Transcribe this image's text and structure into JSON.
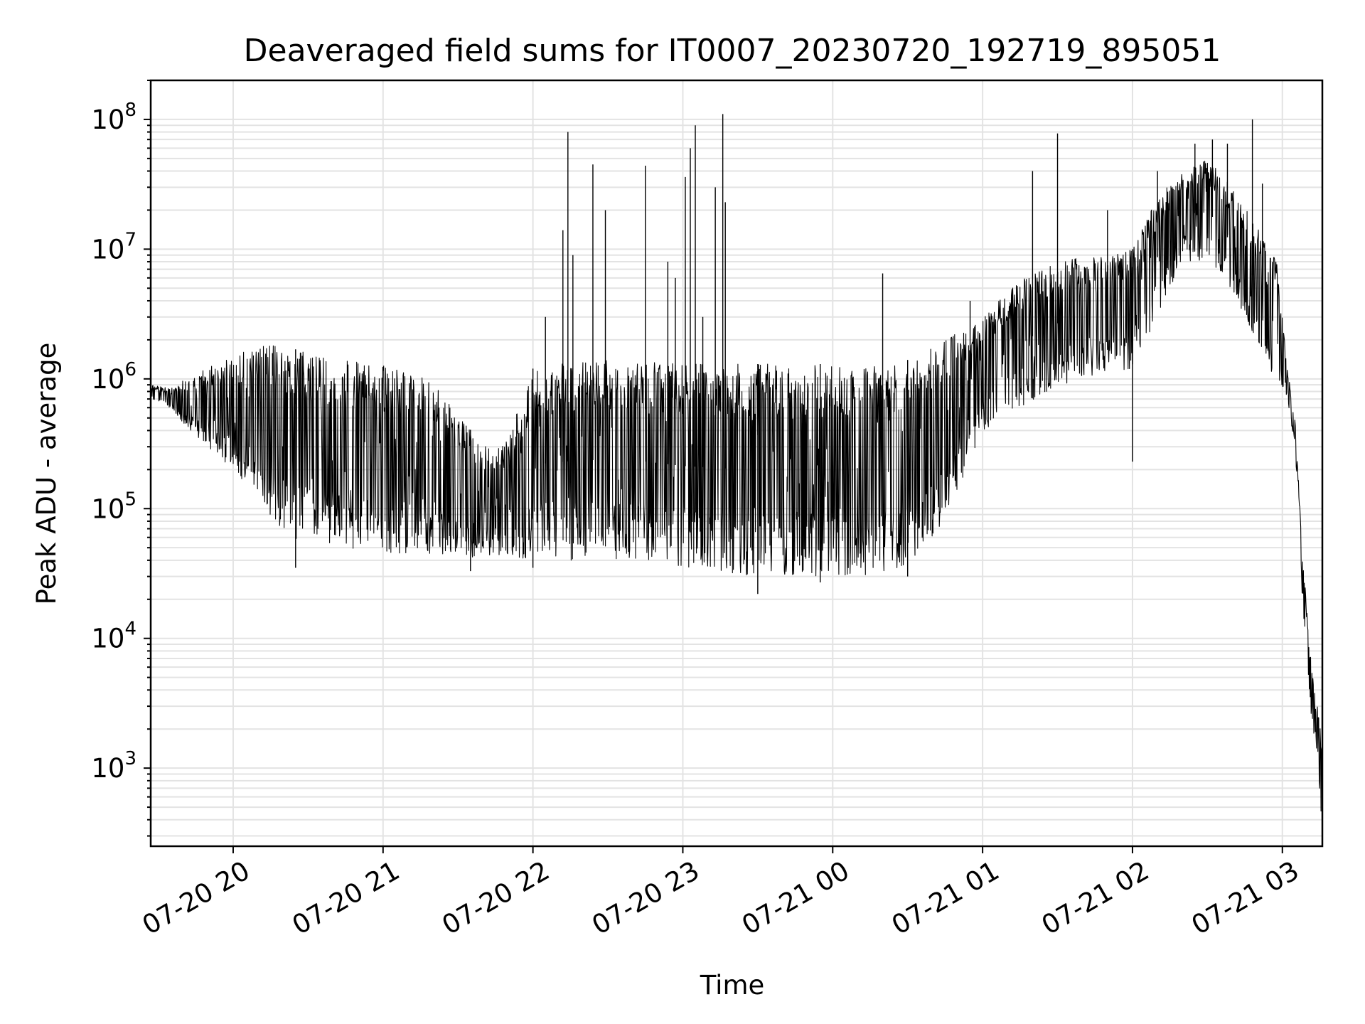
{
  "chart_data": {
    "type": "line",
    "title": "Deaveraged field sums for IT0007_20230720_192719_895051",
    "xlabel": "Time",
    "ylabel": "Peak ADU - average",
    "yscale": "log",
    "ylim": [
      250,
      200000000
    ],
    "xlim": [
      "2023-07-20 19:27",
      "2023-07-21 03:16"
    ],
    "grid": true,
    "line_color": "#000000",
    "x_ticks": [
      {
        "value": "2023-07-20 20:00",
        "label": "07-20 20"
      },
      {
        "value": "2023-07-20 21:00",
        "label": "07-20 21"
      },
      {
        "value": "2023-07-20 22:00",
        "label": "07-20 22"
      },
      {
        "value": "2023-07-20 23:00",
        "label": "07-20 23"
      },
      {
        "value": "2023-07-21 00:00",
        "label": "07-21 00"
      },
      {
        "value": "2023-07-21 01:00",
        "label": "07-21 01"
      },
      {
        "value": "2023-07-21 02:00",
        "label": "07-21 02"
      },
      {
        "value": "2023-07-21 03:00",
        "label": "07-21 03"
      }
    ],
    "y_ticks": [
      {
        "value": 1000,
        "base": "10",
        "exp": "3"
      },
      {
        "value": 10000,
        "base": "10",
        "exp": "4"
      },
      {
        "value": 100000,
        "base": "10",
        "exp": "5"
      },
      {
        "value": 1000000,
        "base": "10",
        "exp": "6"
      },
      {
        "value": 10000000,
        "base": "10",
        "exp": "7"
      },
      {
        "value": 100000000,
        "base": "10",
        "exp": "8"
      }
    ],
    "series": [
      {
        "envelope": [
          {
            "x": "2023-07-20 19:27",
            "upper": 900000,
            "lower": 650000
          },
          {
            "x": "2023-07-20 19:35",
            "upper": 850000,
            "lower": 600000
          },
          {
            "x": "2023-07-20 19:45",
            "upper": 1100000,
            "lower": 350000
          },
          {
            "x": "2023-07-20 20:00",
            "upper": 1500000,
            "lower": 200000
          },
          {
            "x": "2023-07-20 20:10",
            "upper": 1800000,
            "lower": 120000
          },
          {
            "x": "2023-07-20 20:20",
            "upper": 1800000,
            "lower": 60000
          },
          {
            "x": "2023-07-20 20:40",
            "upper": 1400000,
            "lower": 50000
          },
          {
            "x": "2023-07-20 21:00",
            "upper": 1300000,
            "lower": 45000
          },
          {
            "x": "2023-07-20 21:20",
            "upper": 1000000,
            "lower": 45000
          },
          {
            "x": "2023-07-20 21:40",
            "upper": 300000,
            "lower": 40000
          },
          {
            "x": "2023-07-20 21:50",
            "upper": 350000,
            "lower": 40000
          },
          {
            "x": "2023-07-20 22:00",
            "upper": 1200000,
            "lower": 40000
          },
          {
            "x": "2023-07-20 22:20",
            "upper": 1400000,
            "lower": 40000
          },
          {
            "x": "2023-07-20 22:40",
            "upper": 1400000,
            "lower": 40000
          },
          {
            "x": "2023-07-20 23:00",
            "upper": 1300000,
            "lower": 35000
          },
          {
            "x": "2023-07-20 23:30",
            "upper": 1300000,
            "lower": 30000
          },
          {
            "x": "2023-07-20 23:50",
            "upper": 1300000,
            "lower": 30000
          },
          {
            "x": "2023-07-21 00:10",
            "upper": 1300000,
            "lower": 30000
          },
          {
            "x": "2023-07-21 00:30",
            "upper": 1400000,
            "lower": 35000
          },
          {
            "x": "2023-07-21 00:45",
            "upper": 2000000,
            "lower": 80000
          },
          {
            "x": "2023-07-21 01:00",
            "upper": 3000000,
            "lower": 400000
          },
          {
            "x": "2023-07-21 01:15",
            "upper": 6000000,
            "lower": 600000
          },
          {
            "x": "2023-07-21 01:30",
            "upper": 8000000,
            "lower": 900000
          },
          {
            "x": "2023-07-21 01:45",
            "upper": 9000000,
            "lower": 1000000
          },
          {
            "x": "2023-07-21 02:00",
            "upper": 10000000,
            "lower": 1200000
          },
          {
            "x": "2023-07-21 02:10",
            "upper": 25000000,
            "lower": 3000000
          },
          {
            "x": "2023-07-21 02:20",
            "upper": 40000000,
            "lower": 8000000
          },
          {
            "x": "2023-07-21 02:30",
            "upper": 50000000,
            "lower": 8000000
          },
          {
            "x": "2023-07-21 02:40",
            "upper": 30000000,
            "lower": 4000000
          },
          {
            "x": "2023-07-21 02:50",
            "upper": 15000000,
            "lower": 2000000
          },
          {
            "x": "2023-07-21 02:58",
            "upper": 8000000,
            "lower": 900000
          },
          {
            "x": "2023-07-21 03:02",
            "upper": 1200000,
            "lower": 700000
          },
          {
            "x": "2023-07-21 03:05",
            "upper": 500000,
            "lower": 300000
          },
          {
            "x": "2023-07-21 03:08",
            "upper": 50000,
            "lower": 20000
          },
          {
            "x": "2023-07-21 03:11",
            "upper": 8000,
            "lower": 3000
          },
          {
            "x": "2023-07-21 03:14",
            "upper": 3000,
            "lower": 1200
          },
          {
            "x": "2023-07-21 03:16",
            "upper": 1500,
            "lower": 300
          }
        ],
        "spikes": [
          {
            "x": "2023-07-20 22:05",
            "value": 3000000
          },
          {
            "x": "2023-07-20 22:12",
            "value": 14000000
          },
          {
            "x": "2023-07-20 22:14",
            "value": 80000000
          },
          {
            "x": "2023-07-20 22:16",
            "value": 9000000
          },
          {
            "x": "2023-07-20 22:24",
            "value": 45000000
          },
          {
            "x": "2023-07-20 22:29",
            "value": 20000000
          },
          {
            "x": "2023-07-20 22:45",
            "value": 44000000
          },
          {
            "x": "2023-07-20 22:54",
            "value": 8000000
          },
          {
            "x": "2023-07-20 22:57",
            "value": 6000000
          },
          {
            "x": "2023-07-20 23:01",
            "value": 36000000
          },
          {
            "x": "2023-07-20 23:03",
            "value": 60000000
          },
          {
            "x": "2023-07-20 23:05",
            "value": 90000000
          },
          {
            "x": "2023-07-20 23:08",
            "value": 3000000
          },
          {
            "x": "2023-07-20 23:13",
            "value": 30000000
          },
          {
            "x": "2023-07-20 23:16",
            "value": 110000000
          },
          {
            "x": "2023-07-20 23:17",
            "value": 23000000
          },
          {
            "x": "2023-07-21 00:20",
            "value": 6500000
          },
          {
            "x": "2023-07-21 00:55",
            "value": 4000000
          },
          {
            "x": "2023-07-21 01:20",
            "value": 40000000
          },
          {
            "x": "2023-07-21 01:30",
            "value": 78000000
          },
          {
            "x": "2023-07-21 01:50",
            "value": 20000000
          },
          {
            "x": "2023-07-21 02:10",
            "value": 40000000
          },
          {
            "x": "2023-07-21 02:25",
            "value": 65000000
          },
          {
            "x": "2023-07-21 02:32",
            "value": 70000000
          },
          {
            "x": "2023-07-21 02:38",
            "value": 65000000
          },
          {
            "x": "2023-07-21 02:48",
            "value": 100000000
          },
          {
            "x": "2023-07-21 02:52",
            "value": 32000000
          }
        ],
        "dips": [
          {
            "x": "2023-07-20 20:25",
            "value": 35000
          },
          {
            "x": "2023-07-20 21:35",
            "value": 33000
          },
          {
            "x": "2023-07-20 22:00",
            "value": 35000
          },
          {
            "x": "2023-07-20 23:30",
            "value": 22000
          },
          {
            "x": "2023-07-20 23:55",
            "value": 27000
          },
          {
            "x": "2023-07-21 00:30",
            "value": 30000
          },
          {
            "x": "2023-07-21 02:00",
            "value": 230000
          }
        ]
      }
    ]
  }
}
